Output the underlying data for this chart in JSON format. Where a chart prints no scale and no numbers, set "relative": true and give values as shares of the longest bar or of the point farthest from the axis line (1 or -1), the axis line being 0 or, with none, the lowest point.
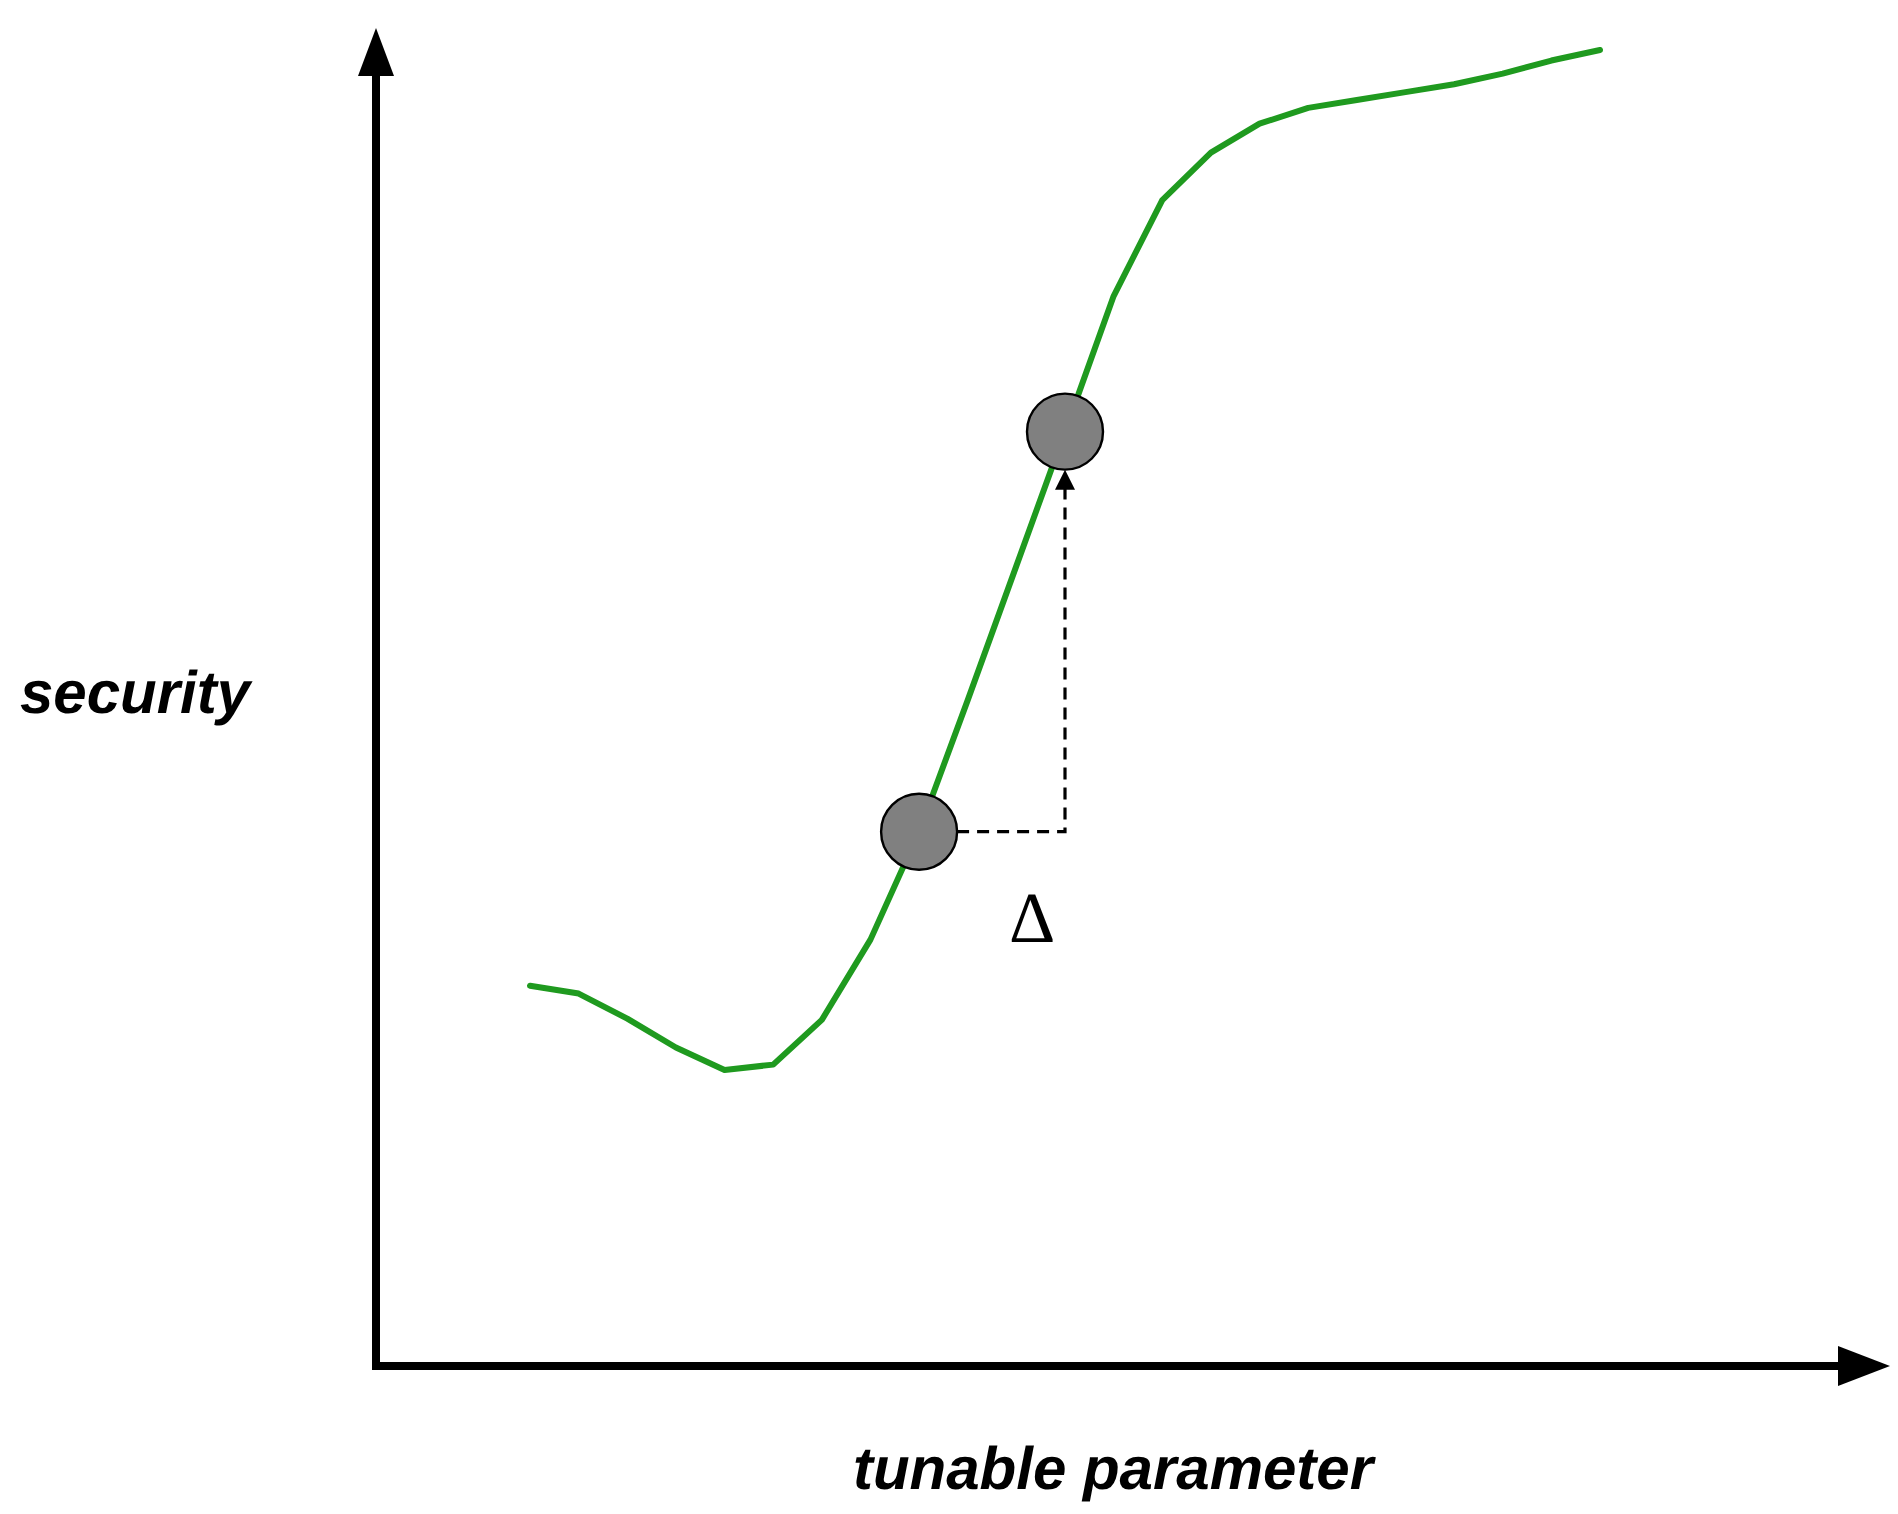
{
  "chart_data": {
    "type": "line",
    "xlabel": "tunable parameter",
    "ylabel": "security",
    "relative": true,
    "grid": false,
    "categories": [
      null,
      null,
      null,
      null,
      null,
      null,
      null,
      null,
      null,
      null,
      null,
      null,
      null,
      null,
      null,
      null,
      null,
      null,
      null,
      null,
      null,
      null,
      null
    ],
    "annotations": [
      "Δ"
    ],
    "series": [
      {
        "color": "#1f9a1f",
        "values": [
          0.289,
          0.283,
          0.264,
          0.242,
          0.225,
          0.229,
          0.263,
          0.324,
          0.406,
          0.506,
          0.608,
          0.71,
          0.813,
          0.886,
          0.922,
          0.944,
          0.956,
          0.962,
          0.968,
          0.974,
          0.982,
          0.992,
          1
        ]
      }
    ]
  }
}
